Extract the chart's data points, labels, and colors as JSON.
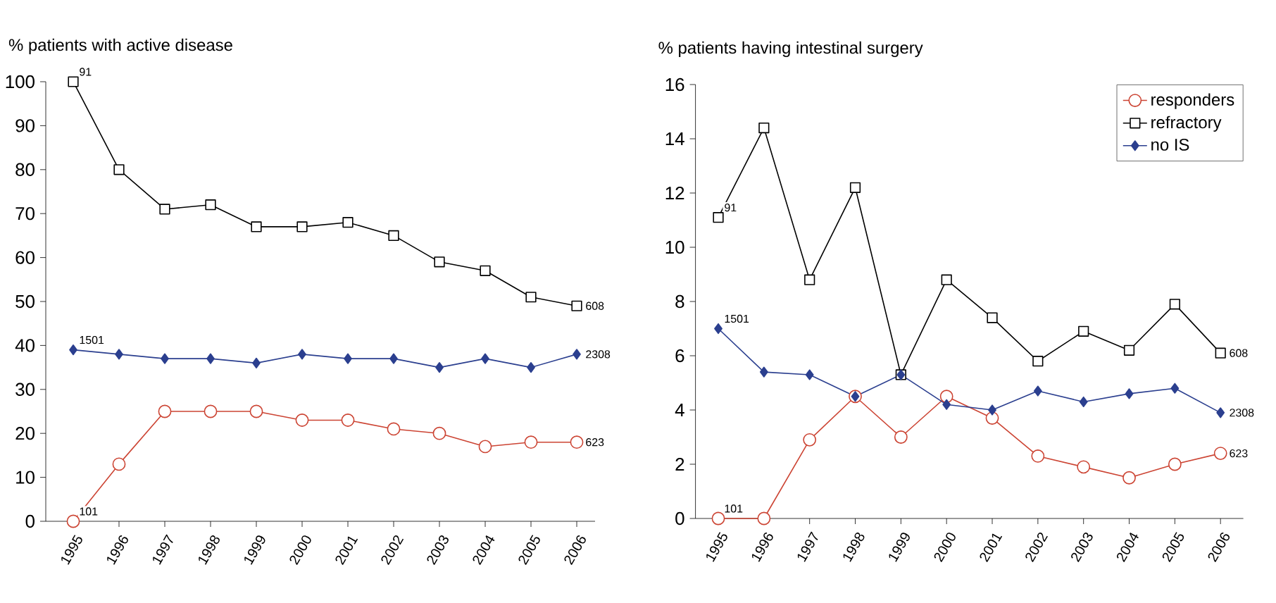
{
  "chart_data": [
    {
      "type": "line",
      "title": "% patients with active disease",
      "categories": [
        "1995",
        "1996",
        "1997",
        "1998",
        "1999",
        "2000",
        "2001",
        "2002",
        "2003",
        "2004",
        "2005",
        "2006"
      ],
      "series": [
        {
          "color": "#cc4433",
          "marker": "circle",
          "values": [
            0,
            13,
            25,
            25,
            25,
            23,
            23,
            21,
            20,
            17,
            18,
            18
          ]
        },
        {
          "color": "#000000",
          "marker": "square",
          "values": [
            100,
            80,
            71,
            72,
            67,
            67,
            68,
            65,
            59,
            57,
            51,
            49
          ]
        },
        {
          "color": "#2b3f8f",
          "marker": "diamond",
          "values": [
            39,
            38,
            37,
            37,
            36,
            38,
            37,
            37,
            35,
            37,
            35,
            38
          ]
        }
      ],
      "ylim": [
        0,
        100
      ],
      "yticks": [
        0,
        10,
        20,
        30,
        40,
        50,
        60,
        70,
        80,
        90,
        100
      ],
      "grid": false,
      "annotations": [
        {
          "text": "91",
          "x": "1995",
          "y": 100
        },
        {
          "text": "1501",
          "x": "1995",
          "y": 39
        },
        {
          "text": "101",
          "x": "1995",
          "y": 0
        },
        {
          "text": "608",
          "x": "2006",
          "y": 49
        },
        {
          "text": "2308",
          "x": "2006",
          "y": 38
        },
        {
          "text": "623",
          "x": "2006",
          "y": 18
        }
      ]
    },
    {
      "type": "line",
      "title": "% patients having intestinal surgery",
      "categories": [
        "1995",
        "1996",
        "1997",
        "1998",
        "1999",
        "2000",
        "2001",
        "2002",
        "2003",
        "2004",
        "2005",
        "2006"
      ],
      "series": [
        {
          "name": "responders",
          "color": "#cc4433",
          "marker": "circle",
          "values": [
            0,
            0,
            2.9,
            4.5,
            3.0,
            4.5,
            3.7,
            2.3,
            1.9,
            1.5,
            2.0,
            2.4
          ]
        },
        {
          "name": "refractory",
          "color": "#000000",
          "marker": "square",
          "values": [
            11.1,
            14.4,
            8.8,
            12.2,
            5.3,
            8.8,
            7.4,
            5.8,
            6.9,
            6.2,
            7.9,
            6.1
          ]
        },
        {
          "name": "no IS",
          "color": "#2b3f8f",
          "marker": "diamond",
          "values": [
            7.0,
            5.4,
            5.3,
            4.5,
            5.3,
            4.2,
            4.0,
            4.7,
            4.3,
            4.6,
            4.8,
            3.9
          ]
        }
      ],
      "ylim": [
        0,
        16
      ],
      "yticks": [
        0,
        2,
        4,
        6,
        8,
        10,
        12,
        14,
        16
      ],
      "grid": false,
      "legend": "top right",
      "annotations": [
        {
          "text": "91",
          "x": "1995",
          "y": 11.1
        },
        {
          "text": "1501",
          "x": "1995",
          "y": 7.0
        },
        {
          "text": "101",
          "x": "1995",
          "y": 0
        },
        {
          "text": "608",
          "x": "2006",
          "y": 6.1
        },
        {
          "text": "2308",
          "x": "2006",
          "y": 3.9
        },
        {
          "text": "623",
          "x": "2006",
          "y": 2.4
        }
      ]
    }
  ]
}
